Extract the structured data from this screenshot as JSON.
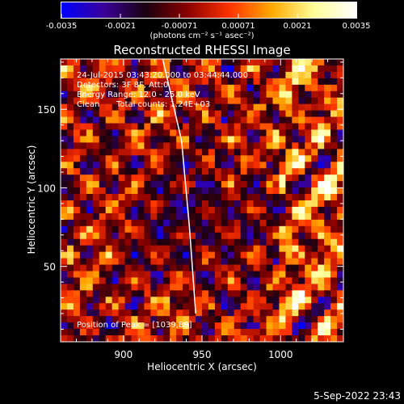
{
  "colorbar": {
    "tick_labels": [
      "-0.0035",
      "-0.0021",
      "-0.00071",
      "0.00071",
      "0.0021",
      "0.0035"
    ],
    "unit_label": "(photons cm⁻² s⁻¹ asec⁻²)",
    "colors": [
      "#0000ff",
      "#3a0099",
      "#1a0010",
      "#8b0000",
      "#ff3300",
      "#ffaa00",
      "#ffff99",
      "#ffffff"
    ]
  },
  "chart_data": {
    "type": "heatmap",
    "title": "Reconstructed RHESSI Image",
    "xlabel": "Heliocentric X (arcsec)",
    "ylabel": "Heliocentric Y (arcsec)",
    "xlim": [
      860,
      1040
    ],
    "ylim": [
      2,
      182
    ],
    "x_ticks": [
      900,
      950,
      1000
    ],
    "y_ticks": [
      50,
      100,
      150
    ],
    "colorbar_range": [
      -0.0035,
      0.0035
    ],
    "limb_curve": [
      [
        925,
        182
      ],
      [
        937,
        130
      ],
      [
        942,
        75
      ],
      [
        946,
        20
      ]
    ],
    "annotations": {
      "time_range": "24-Jul-2015 03:43:20.000 to 03:44:44.000",
      "detectors": "Detectors: 3F 8F, Att:0",
      "energy_range": "Energy Range: 12.0 - 25.0 keV",
      "clean_label": "Clean",
      "total_counts": "Total counts: 1.24E+03",
      "peak_position": "Position of Peak = [1039,89]"
    }
  },
  "footer": {
    "timestamp": "5-Sep-2022 23:43"
  }
}
